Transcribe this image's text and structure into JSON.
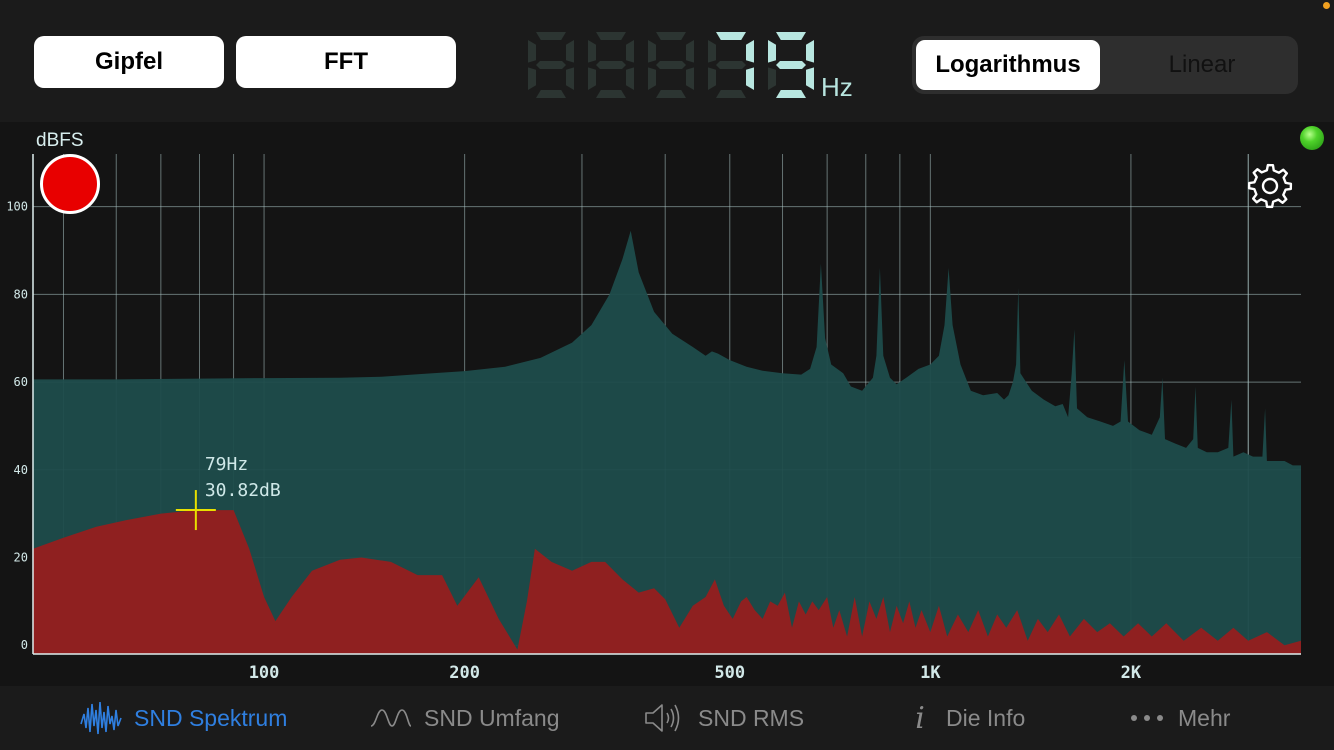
{
  "toolbar": {
    "peak_label": "Gipfel",
    "fft_label": "FFT",
    "frequency_value": "79",
    "frequency_unit": "Hz",
    "scale_options": [
      "Logarithmus",
      "Linear"
    ],
    "scale_selected": "Logarithmus"
  },
  "chart": {
    "ylabel": "dBFS",
    "y_ticks": [
      "100",
      "80",
      "60",
      "40",
      "20",
      "0"
    ],
    "x_ticks": [
      "100",
      "200",
      "500",
      "1K",
      "2K"
    ],
    "cursor": {
      "freq_label": "79Hz",
      "db_label": "30.82dB"
    }
  },
  "tabs": [
    {
      "label": "SND Spektrum",
      "icon": "waveform-icon",
      "selected": true
    },
    {
      "label": "SND Umfang",
      "icon": "wave-envelope-icon",
      "selected": false
    },
    {
      "label": "SND RMS",
      "icon": "speaker-icon",
      "selected": false
    },
    {
      "label": "Die Info",
      "icon": "info-icon",
      "selected": false
    },
    {
      "label": "Mehr",
      "icon": "more-dots-icon",
      "selected": false
    }
  ],
  "colors": {
    "accent": "#2f7fe0",
    "peak_fill": "#1e4c4b",
    "live_fill": "#8f2020",
    "lcd_on": "#b8e6e0",
    "lcd_off": "#2c3532",
    "cursor": "#e8e000"
  },
  "chart_data": {
    "type": "area",
    "x_scale": "log",
    "xlim": [
      45,
      3600
    ],
    "ylim": [
      -2,
      112
    ],
    "series": [
      {
        "name": "Gipfel",
        "points": [
          [
            45,
            60.6
          ],
          [
            60,
            60.6
          ],
          [
            80,
            60.8
          ],
          [
            100,
            60.9
          ],
          [
            130,
            61
          ],
          [
            150,
            61.2
          ],
          [
            170,
            61.8
          ],
          [
            200,
            62.5
          ],
          [
            230,
            63.5
          ],
          [
            260,
            65.5
          ],
          [
            290,
            69
          ],
          [
            310,
            73
          ],
          [
            330,
            80
          ],
          [
            345,
            88
          ],
          [
            355,
            94.5
          ],
          [
            365,
            85
          ],
          [
            385,
            76
          ],
          [
            410,
            71
          ],
          [
            440,
            68
          ],
          [
            460,
            66
          ],
          [
            470,
            67
          ],
          [
            480,
            66.5
          ],
          [
            500,
            65
          ],
          [
            530,
            63.5
          ],
          [
            560,
            62.6
          ],
          [
            600,
            62
          ],
          [
            640,
            61.7
          ],
          [
            660,
            63
          ],
          [
            675,
            68
          ],
          [
            685,
            87
          ],
          [
            695,
            70
          ],
          [
            710,
            64
          ],
          [
            740,
            62
          ],
          [
            760,
            59
          ],
          [
            790,
            58
          ],
          [
            820,
            61
          ],
          [
            830,
            66
          ],
          [
            840,
            86
          ],
          [
            850,
            66
          ],
          [
            870,
            61
          ],
          [
            890,
            59.5
          ],
          [
            920,
            61
          ],
          [
            960,
            63
          ],
          [
            1000,
            64
          ],
          [
            1030,
            66
          ],
          [
            1050,
            73
          ],
          [
            1065,
            86
          ],
          [
            1080,
            73
          ],
          [
            1110,
            64
          ],
          [
            1150,
            58
          ],
          [
            1200,
            57
          ],
          [
            1260,
            57.5
          ],
          [
            1290,
            56
          ],
          [
            1310,
            57
          ],
          [
            1330,
            60
          ],
          [
            1345,
            64
          ],
          [
            1355,
            81.5
          ],
          [
            1365,
            62
          ],
          [
            1420,
            58
          ],
          [
            1480,
            56
          ],
          [
            1540,
            54.5
          ],
          [
            1580,
            55
          ],
          [
            1610,
            52
          ],
          [
            1630,
            62
          ],
          [
            1645,
            72
          ],
          [
            1660,
            54
          ],
          [
            1720,
            52
          ],
          [
            1800,
            51
          ],
          [
            1880,
            50
          ],
          [
            1930,
            51
          ],
          [
            1955,
            65
          ],
          [
            1980,
            51
          ],
          [
            2060,
            49
          ],
          [
            2150,
            48
          ],
          [
            2210,
            52
          ],
          [
            2230,
            61
          ],
          [
            2250,
            47
          ],
          [
            2330,
            46
          ],
          [
            2420,
            45
          ],
          [
            2480,
            47
          ],
          [
            2500,
            59
          ],
          [
            2520,
            45
          ],
          [
            2600,
            44
          ],
          [
            2700,
            44
          ],
          [
            2800,
            45
          ],
          [
            2830,
            56
          ],
          [
            2850,
            43
          ],
          [
            2950,
            44
          ],
          [
            3050,
            43
          ],
          [
            3150,
            43
          ],
          [
            3180,
            54
          ],
          [
            3200,
            42
          ],
          [
            3300,
            42
          ],
          [
            3400,
            42
          ],
          [
            3500,
            41
          ],
          [
            3600,
            41
          ]
        ]
      },
      {
        "name": "Live",
        "points": [
          [
            45,
            22
          ],
          [
            50,
            24.5
          ],
          [
            56,
            27
          ],
          [
            62,
            28.5
          ],
          [
            70,
            30
          ],
          [
            79,
            30.8
          ],
          [
            90,
            30.8
          ],
          [
            95,
            22
          ],
          [
            100,
            11
          ],
          [
            104,
            5.5
          ],
          [
            110,
            11
          ],
          [
            118,
            17
          ],
          [
            130,
            19.5
          ],
          [
            140,
            20
          ],
          [
            155,
            19
          ],
          [
            170,
            16
          ],
          [
            185,
            16
          ],
          [
            195,
            9
          ],
          [
            210,
            15.5
          ],
          [
            225,
            6
          ],
          [
            240,
            -1
          ],
          [
            248,
            10
          ],
          [
            255,
            22
          ],
          [
            270,
            19
          ],
          [
            290,
            17
          ],
          [
            310,
            19
          ],
          [
            325,
            19
          ],
          [
            345,
            15
          ],
          [
            365,
            12
          ],
          [
            385,
            13
          ],
          [
            400,
            10.5
          ],
          [
            420,
            4
          ],
          [
            440,
            9
          ],
          [
            460,
            11
          ],
          [
            475,
            15
          ],
          [
            490,
            9
          ],
          [
            505,
            6
          ],
          [
            520,
            10
          ],
          [
            530,
            11
          ],
          [
            545,
            8
          ],
          [
            560,
            6
          ],
          [
            575,
            10
          ],
          [
            590,
            9
          ],
          [
            605,
            12
          ],
          [
            620,
            4
          ],
          [
            635,
            10
          ],
          [
            650,
            7
          ],
          [
            665,
            10
          ],
          [
            680,
            8
          ],
          [
            700,
            11
          ],
          [
            715,
            4
          ],
          [
            730,
            8
          ],
          [
            750,
            2
          ],
          [
            770,
            11
          ],
          [
            790,
            2
          ],
          [
            810,
            10
          ],
          [
            830,
            6
          ],
          [
            850,
            11
          ],
          [
            870,
            3
          ],
          [
            890,
            9
          ],
          [
            910,
            5
          ],
          [
            930,
            10
          ],
          [
            950,
            4
          ],
          [
            970,
            8
          ],
          [
            1000,
            3
          ],
          [
            1030,
            9
          ],
          [
            1060,
            2
          ],
          [
            1100,
            7
          ],
          [
            1140,
            3
          ],
          [
            1180,
            8
          ],
          [
            1220,
            2
          ],
          [
            1260,
            7
          ],
          [
            1300,
            4
          ],
          [
            1350,
            8
          ],
          [
            1400,
            1
          ],
          [
            1450,
            6
          ],
          [
            1500,
            3
          ],
          [
            1560,
            7
          ],
          [
            1620,
            2
          ],
          [
            1700,
            6
          ],
          [
            1780,
            3
          ],
          [
            1860,
            5
          ],
          [
            1950,
            2
          ],
          [
            2050,
            5
          ],
          [
            2150,
            2
          ],
          [
            2260,
            5
          ],
          [
            2400,
            1
          ],
          [
            2550,
            4
          ],
          [
            2700,
            1
          ],
          [
            2850,
            4
          ],
          [
            3000,
            1
          ],
          [
            3200,
            3
          ],
          [
            3400,
            0
          ],
          [
            3600,
            1
          ]
        ]
      }
    ],
    "cursor_point": {
      "x": 79,
      "y": 30.82
    }
  }
}
